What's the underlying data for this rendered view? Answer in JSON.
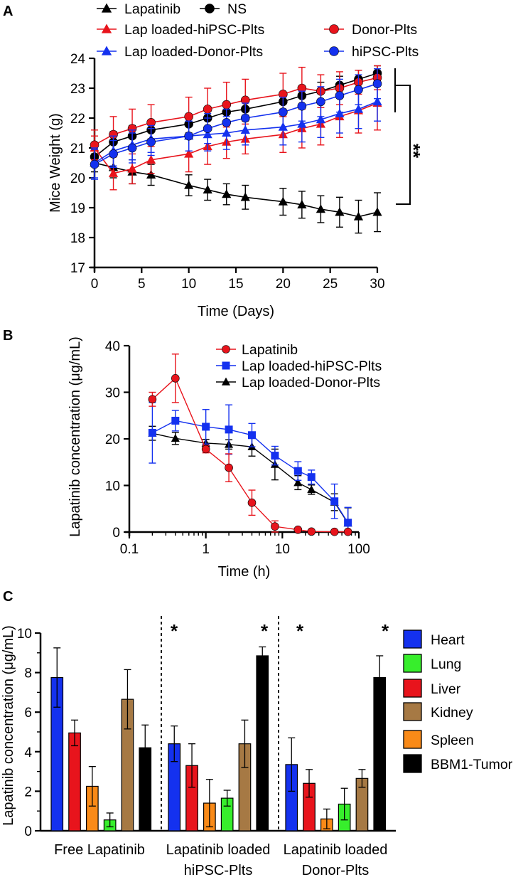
{
  "colors": {
    "black": "#000000",
    "red": "#e8141c",
    "blue": "#1431ef",
    "green": "#37ee2c",
    "orange": "#f98a18",
    "brown": "#a67944"
  },
  "panel_a_label": "A",
  "panel_b_label": "B",
  "panel_c_label": "C",
  "chart_data": [
    {
      "type": "line",
      "panel": "A",
      "xlabel": "Time (Days)",
      "ylabel": "Mice Weight (g)",
      "xlim": [
        0,
        30
      ],
      "ylim": [
        17,
        24
      ],
      "xticks": [
        "0",
        "5",
        "10",
        "15",
        "20",
        "25",
        "30"
      ],
      "yticks": [
        "17",
        "18",
        "19",
        "20",
        "21",
        "22",
        "23",
        "24"
      ],
      "x": [
        0,
        2,
        4,
        6,
        10,
        12,
        14,
        16,
        20,
        22,
        24,
        26,
        28,
        30
      ],
      "series": [
        {
          "name": "Lapatinib",
          "color": "#000000",
          "marker": "triangle",
          "values": [
            20.5,
            20.35,
            20.2,
            20.1,
            19.75,
            19.6,
            19.45,
            19.35,
            19.2,
            19.1,
            18.95,
            18.85,
            18.7,
            18.85
          ],
          "errors": [
            0.3,
            0.35,
            0.4,
            0.35,
            0.35,
            0.35,
            0.35,
            0.4,
            0.45,
            0.45,
            0.45,
            0.5,
            0.55,
            0.65
          ]
        },
        {
          "name": "NS",
          "color": "#000000",
          "marker": "circle",
          "values": [
            20.7,
            21.2,
            21.4,
            21.6,
            21.8,
            22.0,
            22.2,
            22.3,
            22.55,
            22.75,
            22.9,
            23.1,
            23.3,
            23.5
          ],
          "errors": [
            0.3,
            0.35,
            0.35,
            0.3,
            0.3,
            0.3,
            0.3,
            0.3,
            0.3,
            0.3,
            0.3,
            0.3,
            0.3,
            0.25
          ]
        },
        {
          "name": "Lap loaded-hiPSC-Plts",
          "color": "#e8141c",
          "marker": "triangle",
          "values": [
            21.0,
            20.15,
            20.3,
            20.6,
            20.8,
            21.05,
            21.2,
            21.3,
            21.45,
            21.65,
            21.8,
            22.05,
            22.25,
            22.5
          ],
          "errors": [
            0.4,
            0.55,
            0.5,
            0.45,
            0.6,
            0.6,
            0.55,
            0.5,
            0.6,
            0.65,
            0.7,
            0.7,
            0.75,
            0.9
          ]
        },
        {
          "name": "Donor-Plts",
          "color": "#e8141c",
          "marker": "circle",
          "values": [
            21.1,
            21.45,
            21.65,
            21.85,
            22.05,
            22.3,
            22.45,
            22.6,
            22.8,
            23.0,
            22.9,
            23.0,
            23.2,
            23.35
          ],
          "errors": [
            0.5,
            0.6,
            0.65,
            0.6,
            0.65,
            0.7,
            0.75,
            0.7,
            0.7,
            0.7,
            0.55,
            0.55,
            0.4,
            0.4
          ]
        },
        {
          "name": "Lap loaded-Donor-Plts",
          "color": "#1431ef",
          "marker": "triangle",
          "values": [
            20.5,
            20.9,
            21.1,
            21.3,
            21.4,
            21.45,
            21.5,
            21.6,
            21.7,
            21.8,
            21.95,
            22.15,
            22.3,
            22.55
          ],
          "errors": [
            0.5,
            0.5,
            0.5,
            0.45,
            0.5,
            0.55,
            0.55,
            0.5,
            0.6,
            0.6,
            0.6,
            0.65,
            0.65,
            0.65
          ]
        },
        {
          "name": "hiPSC-Plts",
          "color": "#1431ef",
          "marker": "circle",
          "values": [
            20.45,
            20.8,
            21.0,
            21.2,
            21.4,
            21.65,
            21.85,
            22.0,
            22.2,
            22.4,
            22.55,
            22.75,
            22.95,
            23.15
          ],
          "errors": [
            0.5,
            0.45,
            0.5,
            0.45,
            0.5,
            0.5,
            0.45,
            0.5,
            0.5,
            0.5,
            0.5,
            0.55,
            0.5,
            0.5
          ]
        }
      ],
      "significance": "**"
    },
    {
      "type": "line",
      "panel": "B",
      "xscale": "log",
      "xlabel": "Time (h)",
      "ylabel": "Lapatinib concentration (μg/mL)",
      "xlim": [
        0.1,
        100
      ],
      "ylim": [
        0,
        40
      ],
      "xticks": [
        "0.1",
        "1",
        "10",
        "100"
      ],
      "yticks": [
        "0",
        "10",
        "20",
        "30",
        "40"
      ],
      "series": [
        {
          "name": "Lapatinib",
          "color": "#e8141c",
          "marker": "circle",
          "x": [
            0.2,
            0.4,
            1,
            2,
            4,
            8,
            16,
            24,
            48,
            72
          ],
          "values": [
            28.5,
            33.0,
            17.8,
            13.8,
            6.3,
            1.2,
            0.5,
            0.1,
            0.05,
            0.05
          ],
          "errors": [
            1.5,
            5.2,
            0.8,
            3.0,
            2.7,
            1.2,
            0.3,
            0.1,
            0.05,
            0.05
          ]
        },
        {
          "name": "Lap loaded-hiPSC-Plts",
          "color": "#1431ef",
          "marker": "square",
          "x": [
            0.2,
            0.4,
            1,
            2,
            4,
            8,
            16,
            24,
            48,
            72
          ],
          "values": [
            21.3,
            23.9,
            22.6,
            22.0,
            20.8,
            16.4,
            13.1,
            11.8,
            6.6,
            2.0
          ],
          "errors": [
            6.5,
            2.2,
            3.7,
            5.3,
            2.5,
            2.0,
            2.0,
            1.5,
            3.7,
            3.3
          ]
        },
        {
          "name": "Lap loaded-Donor-Plts",
          "color": "#000000",
          "marker": "triangle",
          "x": [
            0.2,
            0.4,
            1,
            2,
            4,
            8,
            16,
            24,
            48,
            72
          ],
          "values": [
            21.2,
            20.1,
            19.1,
            18.8,
            18.3,
            14.5,
            10.6,
            9.1,
            6.4,
            1.9
          ],
          "errors": [
            1.5,
            1.3,
            0.8,
            1.0,
            2.0,
            3.3,
            1.5,
            1.0,
            1.8,
            3.3
          ]
        }
      ]
    },
    {
      "type": "bar",
      "panel": "C",
      "ylabel": "Lapatinib concentration (μg/mL)",
      "ylim": [
        0,
        10
      ],
      "yticks": [
        "0",
        "2",
        "4",
        "6",
        "8",
        "10"
      ],
      "group_labels": [
        [
          "Free Lapatinib"
        ],
        [
          "Lapatinib loaded",
          "hiPSC-Plts"
        ],
        [
          "Lapatinib loaded",
          "Donor-Plts"
        ]
      ],
      "significance_marks": [
        "*",
        "*",
        "*",
        "*"
      ],
      "groups": [
        {
          "bars": [
            {
              "name": "Heart",
              "value": 7.75,
              "error": 1.5
            },
            {
              "name": "Liver",
              "value": 4.95,
              "error": 0.65
            },
            {
              "name": "Spleen",
              "value": 2.25,
              "error": 1.0
            },
            {
              "name": "Lung",
              "value": 0.55,
              "error": 0.35
            },
            {
              "name": "Kidney",
              "value": 6.65,
              "error": 1.5
            },
            {
              "name": "BBM1-Tumor",
              "value": 4.2,
              "error": 1.15
            }
          ]
        },
        {
          "bars": [
            {
              "name": "Heart",
              "value": 4.4,
              "error": 0.9
            },
            {
              "name": "Liver",
              "value": 3.3,
              "error": 1.1
            },
            {
              "name": "Spleen",
              "value": 1.4,
              "error": 1.2
            },
            {
              "name": "Lung",
              "value": 1.65,
              "error": 0.4
            },
            {
              "name": "Kidney",
              "value": 4.4,
              "error": 1.2
            },
            {
              "name": "BBM1-Tumor",
              "value": 8.85,
              "error": 0.45
            }
          ]
        },
        {
          "bars": [
            {
              "name": "Heart",
              "value": 3.35,
              "error": 1.35
            },
            {
              "name": "Liver",
              "value": 2.4,
              "error": 0.7
            },
            {
              "name": "Spleen",
              "value": 0.6,
              "error": 0.5
            },
            {
              "name": "Lung",
              "value": 1.35,
              "error": 0.8
            },
            {
              "name": "Kidney",
              "value": 2.65,
              "error": 0.45
            },
            {
              "name": "BBM1-Tumor",
              "value": 7.75,
              "error": 1.1
            }
          ]
        }
      ],
      "legend": [
        "Heart",
        "Lung",
        "Liver",
        "Kidney",
        "Spleen",
        "BBM1-Tumor"
      ],
      "legend_colors": {
        "Heart": "#1431ef",
        "Lung": "#37ee2c",
        "Liver": "#e8141c",
        "Kidney": "#a67944",
        "Spleen": "#f98a18",
        "BBM1-Tumor": "#000000"
      }
    }
  ]
}
